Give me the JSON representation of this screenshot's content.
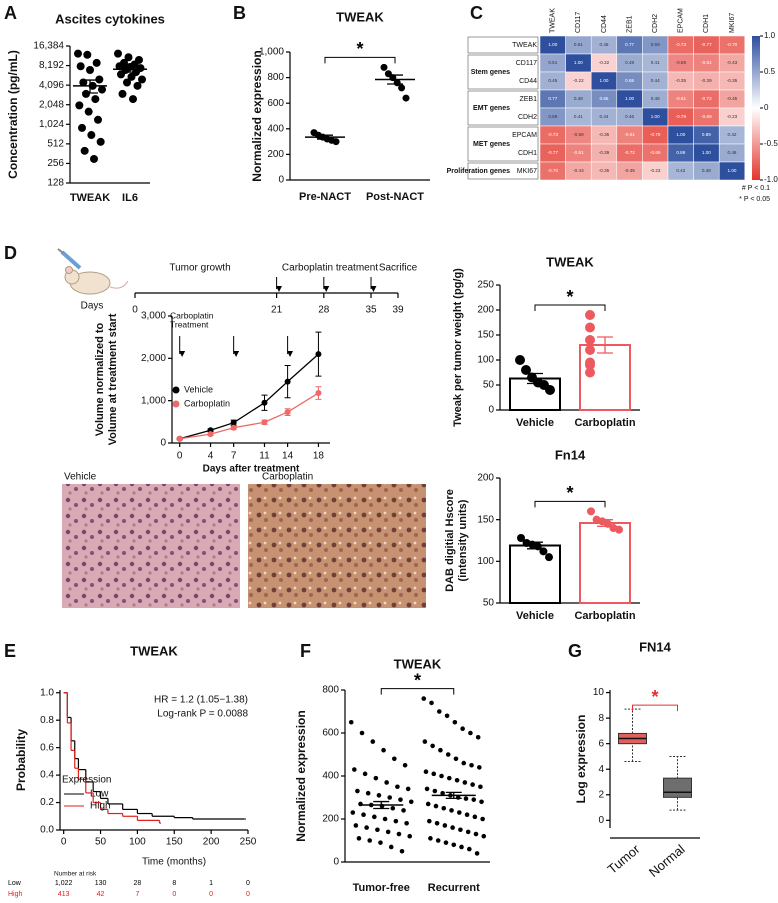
{
  "chart_data": [
    {
      "panel": "A",
      "type": "dot",
      "title": "Ascites cytokines",
      "y_label": "Concentration (pg/mL)",
      "log_base": 2,
      "ylim": [
        128,
        16384
      ],
      "yticks": [
        128,
        256,
        512,
        {
          "value": 1024,
          "label": "1,024"
        },
        {
          "value": 2048,
          "label": "2,048"
        },
        {
          "value": 4096,
          "label": "4,096"
        },
        {
          "value": 8192,
          "label": "8,192"
        },
        {
          "value": 16384,
          "label": "16,384"
        }
      ],
      "categories": [
        "TWEAK",
        "IL6"
      ],
      "groups": [
        {
          "color": "#000000",
          "mean": 4000,
          "error": 900,
          "values": [
            12500,
            12000,
            9000,
            8000,
            7000,
            5000,
            4500,
            4000,
            3500,
            3000,
            2500,
            2000,
            1600,
            1200,
            900,
            700,
            550,
            400,
            300
          ]
        },
        {
          "color": "#000000",
          "mean": 7200,
          "error": 700,
          "values": [
            12500,
            11000,
            10000,
            9000,
            8500,
            8000,
            7800,
            7500,
            7000,
            6500,
            6000,
            5500,
            5000,
            4500,
            4000,
            3000,
            2500
          ]
        }
      ]
    },
    {
      "panel": "B",
      "type": "dot",
      "title": "TWEAK",
      "y_label": "Normalized expression",
      "ylim": [
        0,
        1000
      ],
      "yticks": [
        0,
        200,
        400,
        600,
        800,
        {
          "value": 1000,
          "label": "1,000"
        }
      ],
      "categories": [
        "Pre-NACT",
        "Post-NACT"
      ],
      "significance": "*",
      "groups": [
        {
          "color": "#000000",
          "mean": 335,
          "error": 15,
          "values": [
            370,
            350,
            335,
            320,
            310,
            300
          ]
        },
        {
          "color": "#000000",
          "mean": 785,
          "error": 35,
          "values": [
            880,
            830,
            800,
            760,
            720,
            640
          ]
        }
      ]
    },
    {
      "panel": "C",
      "type": "heatmap",
      "columns": [
        "TWEAK",
        "CD117",
        "CD44",
        "ZEB1",
        "CDH2",
        "EPCAM",
        "CDH1",
        "MKI67"
      ],
      "rows": [
        "TWEAK",
        "CD117",
        "CD44",
        "ZEB1",
        "CDH2",
        "EPCAM",
        "CDH1",
        "MKI67"
      ],
      "row_groups": [
        null,
        "Stem genes",
        "Stem genes",
        "EMT genes",
        "EMT genes",
        "MET genes",
        "MET genes",
        "Proliferation genes"
      ],
      "values": [
        [
          1,
          0.51,
          0.45,
          0.77,
          0.59,
          -0.73,
          -0.77,
          -0.7
        ],
        [
          0.51,
          1,
          -0.22,
          0.48,
          0.41,
          -0.59,
          -0.61,
          -0.43
        ],
        [
          0.45,
          -0.22,
          1,
          0.65,
          0.44,
          -0.35,
          -0.39,
          -0.35
        ],
        [
          0.77,
          0.48,
          0.65,
          1,
          0.46,
          -0.61,
          -0.72,
          -0.45
        ],
        [
          0.59,
          0.41,
          0.44,
          0.46,
          1,
          -0.79,
          -0.69,
          -0.23
        ],
        [
          -0.73,
          -0.59,
          -0.35,
          -0.61,
          -0.79,
          1,
          0.89,
          0.42
        ],
        [
          -0.77,
          -0.61,
          -0.39,
          -0.72,
          -0.69,
          0.89,
          1,
          0.48
        ],
        [
          -0.7,
          -0.43,
          -0.35,
          -0.45,
          -0.23,
          0.42,
          0.48,
          1
        ]
      ],
      "value_labels": [
        [
          "1.00",
          "0.51",
          "0.45",
          "0.77",
          "0.59",
          "-0.73",
          "-0.77",
          "-0.70"
        ],
        [
          "0.51",
          "1.00",
          "-0.22",
          "0.48",
          "0.41",
          "-0.59",
          "-0.61",
          "-0.43"
        ],
        [
          "0.45",
          "-0.22",
          "1.00",
          "0.65",
          "0.44",
          "-0.35",
          "-0.39",
          "-0.35"
        ],
        [
          "0.77",
          "0.48",
          "0.65",
          "1.00",
          "0.46",
          "-0.61",
          "-0.72",
          "-0.45"
        ],
        [
          "0.59",
          "0.41",
          "0.44",
          "0.46",
          "1.00",
          "-0.79",
          "-0.69",
          "-0.23"
        ],
        [
          "-0.73",
          "-0.59",
          "-0.35",
          "-0.61",
          "-0.79",
          "1.00",
          "0.89",
          "0.42"
        ],
        [
          "-0.77",
          "-0.61",
          "-0.39",
          "-0.72",
          "-0.69",
          "0.89",
          "1.00",
          "0.48"
        ],
        [
          "-0.70",
          "-0.43",
          "-0.35",
          "-0.45",
          "-0.23",
          "0.42",
          "0.48",
          "1.00"
        ]
      ],
      "clim": [
        -1,
        1
      ],
      "colormap": [
        "#e3342c",
        "#ffffff",
        "#2d4f9e"
      ],
      "cbar_ticks": [
        {
          "value": 1,
          "label": "1.0"
        },
        0.5,
        0,
        -0.5,
        {
          "value": -1,
          "label": "-1.0"
        }
      ],
      "notes": [
        "# P < 0.1",
        "* P < 0.05"
      ]
    },
    {
      "type": "line",
      "x": [
        0,
        4,
        7,
        11,
        14,
        18
      ],
      "xlim": [
        -1,
        19.5
      ],
      "xticks": [
        0,
        4,
        7,
        11,
        14,
        18
      ],
      "ylim": [
        0,
        3000
      ],
      "yticks": [
        0,
        {
          "value": 1000,
          "label": "1,000"
        },
        {
          "value": 2000,
          "label": "2,000"
        },
        {
          "value": 3000,
          "label": "3,000"
        }
      ],
      "x_label": "Days after treatment",
      "y_label": [
        "Volume normalized to",
        "Volume at treatment start"
      ],
      "annotation": [
        "Carboplatin",
        "Treatment"
      ],
      "treatment_days": [
        0,
        7,
        14
      ],
      "series": [
        {
          "name": "Vehicle",
          "color": "#000000",
          "values": [
            100,
            300,
            480,
            950,
            1450,
            2100
          ],
          "errors": [
            20,
            30,
            60,
            180,
            380,
            520
          ]
        },
        {
          "name": "Carboplatin",
          "color": "#f06868",
          "values": [
            100,
            210,
            360,
            490,
            730,
            1180
          ],
          "errors": [
            20,
            30,
            40,
            50,
            80,
            150
          ]
        }
      ]
    },
    {
      "type": "bar",
      "title": "TWEAK",
      "y_label": "Tweak per tumor weight (pg/g)",
      "ylim": [
        0,
        250
      ],
      "yticks": [
        0,
        50,
        100,
        150,
        200,
        250
      ],
      "categories": [
        "Vehicle",
        "Carboplatin"
      ],
      "significance": "*",
      "groups": [
        {
          "color": "#000000",
          "mean": 63,
          "error": 10,
          "values": [
            100,
            80,
            65,
            55,
            50,
            40
          ]
        },
        {
          "color": "#ec5a5f",
          "mean": 130,
          "error": 16,
          "values": [
            190,
            165,
            140,
            120,
            95,
            90,
            75
          ]
        }
      ]
    },
    {
      "type": "bar",
      "title": "Fn14",
      "y_label": [
        "DAB digitial Hscore",
        "(intensity units)"
      ],
      "ylim": [
        50,
        200
      ],
      "yticks": [
        50,
        100,
        150,
        200
      ],
      "categories": [
        "Vehicle",
        "Carboplatin"
      ],
      "significance": "*",
      "groups": [
        {
          "color": "#000000",
          "mean": 119,
          "error": 4,
          "values": [
            128,
            122,
            120,
            118,
            112,
            105
          ]
        },
        {
          "color": "#ec5a5f",
          "mean": 146,
          "error": 4,
          "values": [
            160,
            150,
            148,
            145,
            140,
            138
          ]
        }
      ]
    },
    {
      "panel": "E",
      "type": "km",
      "title": "TWEAK",
      "annotations": [
        "HR = 1.2 (1.05−1.38)",
        "Log-rank P = 0.0088"
      ],
      "x_label": "Time (months)",
      "y_label": "Probability",
      "xlim": [
        -5,
        250
      ],
      "xticks": [
        0,
        50,
        100,
        150,
        200,
        250
      ],
      "ylim": [
        0,
        1.02
      ],
      "yticks": [
        {
          "value": 0,
          "label": "0.0"
        },
        0.2,
        0.4,
        0.6,
        0.8,
        {
          "value": 1,
          "label": "1.0"
        }
      ],
      "legend_title": "Expression",
      "series": [
        {
          "name": "Low",
          "color": "#000000",
          "x": [
            0,
            5,
            10,
            15,
            20,
            30,
            40,
            50,
            60,
            80,
            100,
            120,
            150,
            175,
            245
          ],
          "values": [
            1,
            0.82,
            0.65,
            0.52,
            0.44,
            0.35,
            0.28,
            0.23,
            0.19,
            0.15,
            0.12,
            0.1,
            0.09,
            0.08,
            0.08
          ]
        },
        {
          "name": "High",
          "color": "#e0201b",
          "x": [
            0,
            5,
            10,
            15,
            20,
            30,
            40,
            50,
            60,
            80,
            100,
            130
          ],
          "values": [
            1,
            0.78,
            0.58,
            0.45,
            0.37,
            0.27,
            0.2,
            0.15,
            0.12,
            0.1,
            0.07,
            0.05
          ]
        }
      ],
      "risk": {
        "title": "Number at risk",
        "rows": [
          {
            "name": "Low",
            "color": "#000000",
            "values": [
              1022,
              130,
              28,
              8,
              1,
              0
            ],
            "value_labels": [
              "1,022",
              "130",
              "28",
              "8",
              "1",
              "0"
            ]
          },
          {
            "name": "High",
            "color": "#e0201b",
            "values": [
              413,
              42,
              7,
              0,
              0,
              0
            ],
            "value_labels": [
              "413",
              "42",
              "7",
              "0",
              "0",
              "0"
            ]
          }
        ]
      }
    },
    {
      "panel": "F",
      "type": "dot",
      "title": "TWEAK",
      "y_label": "Normalized expression",
      "ylim": [
        0,
        800
      ],
      "yticks": [
        0,
        200,
        400,
        600,
        800
      ],
      "categories": [
        "Tumor-free",
        "Recurrent"
      ],
      "significance": "*",
      "groups": [
        {
          "color": "#000000",
          "mean": 265,
          "error": 16,
          "values": [
            650,
            600,
            560,
            520,
            480,
            450,
            430,
            410,
            390,
            370,
            350,
            340,
            330,
            320,
            310,
            300,
            290,
            280,
            270,
            265,
            260,
            250,
            240,
            230,
            220,
            210,
            200,
            190,
            180,
            170,
            160,
            150,
            140,
            130,
            120,
            110,
            100,
            90,
            70,
            50
          ]
        },
        {
          "color": "#000000",
          "mean": 310,
          "error": 14,
          "values": [
            760,
            740,
            700,
            680,
            650,
            620,
            600,
            580,
            560,
            540,
            520,
            500,
            480,
            460,
            450,
            440,
            420,
            410,
            400,
            390,
            380,
            370,
            360,
            350,
            340,
            330,
            320,
            310,
            300,
            295,
            290,
            280,
            270,
            260,
            250,
            240,
            230,
            220,
            210,
            200,
            190,
            180,
            170,
            160,
            150,
            140,
            130,
            120,
            110,
            100,
            90,
            80,
            70,
            60,
            40
          ]
        }
      ]
    },
    {
      "panel": "G",
      "type": "box",
      "title": "FN14",
      "y_label": "Log expression",
      "ylim": [
        -0.6,
        10.2
      ],
      "yticks": [
        0,
        2,
        4,
        6,
        8,
        10
      ],
      "categories": [
        "Tumor",
        "Normal"
      ],
      "significance": "*",
      "sig_color": "#e03030",
      "groups": [
        {
          "color": "#e0605e",
          "min": 4.6,
          "q1": 6.0,
          "median": 6.4,
          "q3": 6.8,
          "max": 8.7
        },
        {
          "color": "#6e6e6e",
          "min": 0.8,
          "q1": 1.8,
          "median": 2.2,
          "q3": 3.3,
          "max": 5.0
        }
      ]
    }
  ],
  "timeline": {
    "panel": "D",
    "unit": "Days",
    "phases": [
      "Tumor growth",
      "Carboplatin treatment",
      "Sacrifice"
    ],
    "xlim": [
      0,
      39
    ],
    "ticks": [
      0,
      21,
      28,
      35,
      39
    ],
    "treatment_days": [
      21,
      28,
      35
    ]
  },
  "micrographs": {
    "labels": [
      "Vehicle",
      "Carboplatin"
    ]
  }
}
